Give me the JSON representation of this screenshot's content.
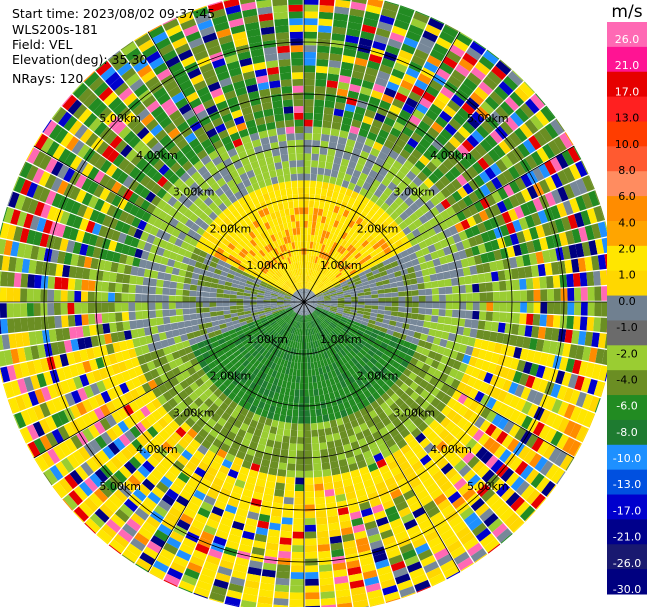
{
  "header": {
    "start_time": "Start time: 2023/08/02 09:37:45",
    "instrument": "WLS200s-181",
    "field": "Field: VEL",
    "elevation": "Elevation(deg): 35.30",
    "nrays": "NRays: 120"
  },
  "chart_data": {
    "type": "heatmap",
    "projection": "polar PPI (plan position indicator)",
    "n_rays": 120,
    "elevation_deg": 35.3,
    "field": "VEL",
    "range_rings_km": [
      1.0,
      2.0,
      3.0,
      4.0,
      5.0
    ],
    "range_ring_labels": [
      "1.00km",
      "2.00km",
      "3.00km",
      "4.00km",
      "5.00km"
    ],
    "spoke_angles_deg": [
      0,
      30,
      60,
      90,
      120,
      150,
      180,
      210,
      240,
      270,
      300,
      330
    ],
    "max_range_km": 6.0,
    "grid": true,
    "colorbar": {
      "unit": "m/s",
      "min": -30.0,
      "max": 30.0,
      "ticks": [
        "26.0",
        "21.0",
        "17.0",
        "13.0",
        "10.0",
        "8.0",
        "6.0",
        "4.0",
        "2.0",
        "1.0",
        "0.0",
        "-1.0",
        "-2.0",
        "-4.0",
        "-6.0",
        "-8.0",
        "-10.0",
        "-13.0",
        "-17.0",
        "-21.0",
        "-26.0",
        "-30.0"
      ],
      "bin_colors": [
        "#ff69b4",
        "#ff1493",
        "#e60000",
        "#ff2020",
        "#ff3d00",
        "#ff5a30",
        "#ff8c60",
        "#ff8c00",
        "#ffa500",
        "#ffe600",
        "#ffd700",
        "#708090",
        "#6b6b6b",
        "#9acd32",
        "#6b8e23",
        "#228b22",
        "#1e7b30",
        "#1e90ff",
        "#0050e0",
        "#0000cd",
        "#00008b",
        "#191970",
        "#000080"
      ]
    },
    "velocity_pattern": {
      "near_north_sector": "2.0 to 4.0 m/s (yellow/orange), radius 0.2–2.2 km",
      "near_south_sector": "-2.0 to -6.0 m/s (green), radius 0.2–2.2 km",
      "near_west_east": "~0 m/s (gray)",
      "far_north": "-4.0 to -6.0 m/s (green)",
      "far_south": "2.0 to 4.0 m/s (yellow)",
      "beyond_4km": "noisy, all bins"
    }
  }
}
